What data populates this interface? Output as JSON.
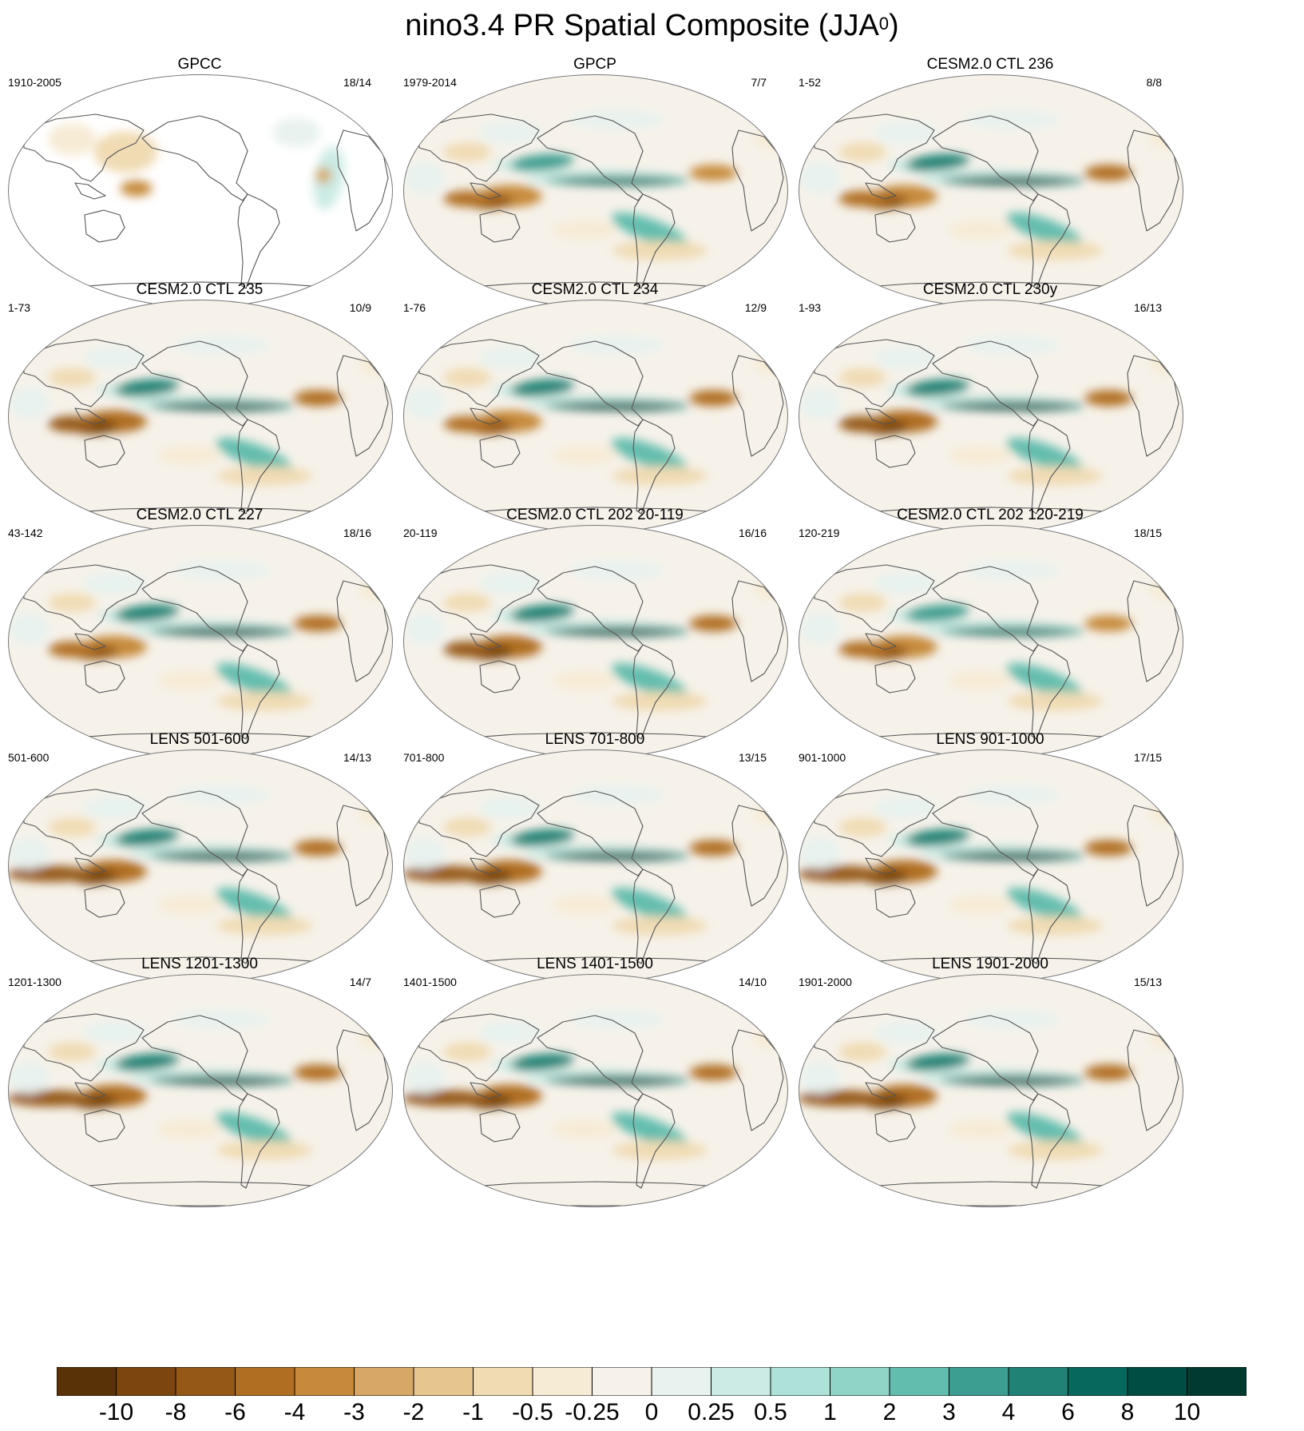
{
  "title": {
    "main": "nino3.4 PR Spatial Composite (JJA",
    "superscript": "0",
    "close": ")"
  },
  "colors": {
    "land_outline": "#555555",
    "globe_outline": "#777777",
    "background": "#ffffff"
  },
  "panels": [
    {
      "title": "GPCC",
      "left": "1910-2005",
      "right": "18/14",
      "variant": "land_only",
      "strength": 0.45
    },
    {
      "title": "GPCP",
      "left": "1979-2014",
      "right": "7/7",
      "variant": "obs",
      "strength": 0.75
    },
    {
      "title": "CESM2.0 CTL 236",
      "left": "1-52",
      "right": "8/8",
      "variant": "model",
      "strength": 0.85
    },
    {
      "title": "CESM2.0 CTL 235",
      "left": "1-73",
      "right": "10/9",
      "variant": "model",
      "strength": 0.9
    },
    {
      "title": "CESM2.0 CTL 234",
      "left": "1-76",
      "right": "12/9",
      "variant": "model",
      "strength": 0.85
    },
    {
      "title": "CESM2.0 CTL 230y",
      "left": "1-93",
      "right": "16/13",
      "variant": "model",
      "strength": 0.95
    },
    {
      "title": "CESM2.0 CTL 227",
      "left": "43-142",
      "right": "18/16",
      "variant": "model",
      "strength": 0.85
    },
    {
      "title": "CESM2.0 CTL 202 20-119",
      "left": "20-119",
      "right": "16/16",
      "variant": "model",
      "strength": 0.9
    },
    {
      "title": "CESM2.0 CTL 202 120-219",
      "left": "120-219",
      "right": "18/15",
      "variant": "model",
      "strength": 0.8
    },
    {
      "title": "LENS 501-600",
      "left": "501-600",
      "right": "14/13",
      "variant": "lens",
      "strength": 1.0
    },
    {
      "title": "LENS 701-800",
      "left": "701-800",
      "right": "13/15",
      "variant": "lens",
      "strength": 1.0
    },
    {
      "title": "LENS 901-1000",
      "left": "901-1000",
      "right": "17/15",
      "variant": "lens",
      "strength": 0.9
    },
    {
      "title": "LENS 1201-1300",
      "left": "1201-1300",
      "right": "14/7",
      "variant": "lens",
      "strength": 0.95
    },
    {
      "title": "LENS 1401-1500",
      "left": "1401-1500",
      "right": "14/10",
      "variant": "lens",
      "strength": 0.95
    },
    {
      "title": "LENS 1901-2000",
      "left": "1901-2000",
      "right": "15/13",
      "variant": "lens",
      "strength": 0.9
    }
  ],
  "colorbar": {
    "colors": [
      "#5a3208",
      "#7a450f",
      "#955817",
      "#b06e22",
      "#c68a3a",
      "#d7a865",
      "#e6c58f",
      "#f0dbb3",
      "#f6ebd4",
      "#f6f2ea",
      "#e8f2ef",
      "#cbebe4",
      "#aee2d8",
      "#8fd4c7",
      "#63bdae",
      "#3c9e90",
      "#1f8275",
      "#07695d",
      "#004e43",
      "#003a31"
    ],
    "labels": [
      "-10",
      "-8",
      "-6",
      "-4",
      "-3",
      "-2",
      "-1",
      "-0.5",
      "-0.25",
      "0",
      "0.25",
      "0.5",
      "1",
      "2",
      "3",
      "4",
      "6",
      "8",
      "10"
    ]
  }
}
